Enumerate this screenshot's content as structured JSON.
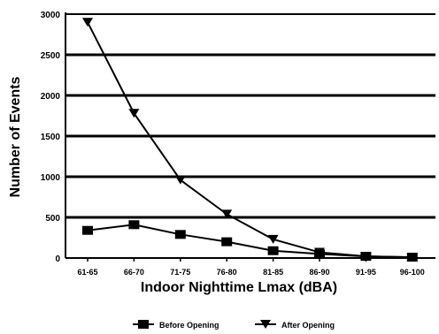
{
  "chart_data": {
    "type": "line",
    "title": "",
    "xlabel": "Indoor Nighttime Lmax (dBA)",
    "ylabel": "Number of Events",
    "categories": [
      "61-65",
      "66-70",
      "71-75",
      "76-80",
      "81-85",
      "86-90",
      "91-95",
      "96-100"
    ],
    "ylim": [
      0,
      3000
    ],
    "yticks": [
      0,
      500,
      1000,
      1500,
      2000,
      2500,
      3000
    ],
    "grid": true,
    "legend_position": "bottom",
    "series": [
      {
        "name": "Before Opening",
        "marker": "square",
        "color": "#000000",
        "values": [
          340,
          410,
          290,
          200,
          90,
          50,
          20,
          10
        ]
      },
      {
        "name": "After Opening",
        "marker": "triangle-down",
        "color": "#000000",
        "values": [
          2900,
          1780,
          960,
          540,
          230,
          70,
          20,
          10
        ]
      }
    ]
  }
}
